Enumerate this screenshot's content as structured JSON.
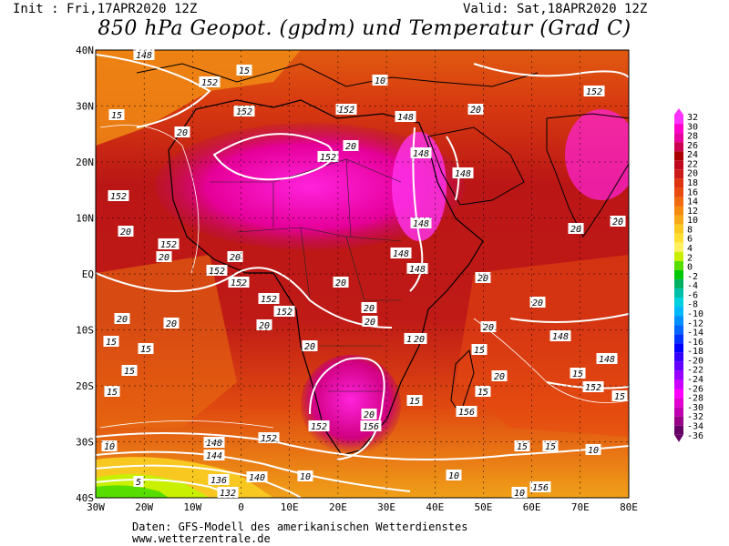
{
  "header": {
    "init": "Init : Fri,17APR2020 12Z",
    "valid": "Valid: Sat,18APR2020 12Z",
    "title": "850 hPa Geopot. (gpdm) und Temperatur (Grad C)"
  },
  "axes": {
    "lat_labels": [
      "40N",
      "30N",
      "20N",
      "10N",
      "EQ",
      "10S",
      "20S",
      "30S",
      "40S"
    ],
    "lon_labels": [
      "30W",
      "20W",
      "10W",
      "0",
      "10E",
      "20E",
      "30E",
      "40E",
      "50E",
      "60E",
      "70E",
      "80E"
    ],
    "lat_range": [
      -40,
      40
    ],
    "lon_range": [
      -30,
      80
    ]
  },
  "legend": {
    "ticks": [
      "32",
      "30",
      "28",
      "26",
      "24",
      "22",
      "20",
      "18",
      "16",
      "14",
      "12",
      "10",
      "8",
      "6",
      "4",
      "2",
      "0",
      "-2",
      "-4",
      "-6",
      "-8",
      "-10",
      "-12",
      "-14",
      "-16",
      "-18",
      "-20",
      "-22",
      "-24",
      "-26",
      "-28",
      "-30",
      "-32",
      "-34",
      "-36"
    ],
    "colors": [
      "#ff33ff",
      "#ff00cc",
      "#e6009e",
      "#cc0052",
      "#aa0000",
      "#c0081e",
      "#cc1a1a",
      "#dd3311",
      "#e84a10",
      "#f06a10",
      "#f58a10",
      "#f8a818",
      "#fbc820",
      "#ffe030",
      "#fff060",
      "#c8f000",
      "#58dd00",
      "#00c800",
      "#00b060",
      "#00c0a8",
      "#00d0e0",
      "#00b8ff",
      "#0090ff",
      "#0066ff",
      "#0033ff",
      "#0000ff",
      "#3300ff",
      "#6600ff",
      "#9900ff",
      "#cc00ff",
      "#ff00ff",
      "#e000d0",
      "#c000b0",
      "#990088",
      "#660066"
    ]
  },
  "map_labels": {
    "geopotential": [
      "152",
      "148",
      "144",
      "140",
      "136",
      "132",
      "156"
    ],
    "temperature": [
      "20",
      "15",
      "10",
      "5"
    ]
  },
  "footer": {
    "source": "Daten: GFS-Modell des amerikanischen Wetterdienstes",
    "url": "www.wetterzentrale.de"
  }
}
